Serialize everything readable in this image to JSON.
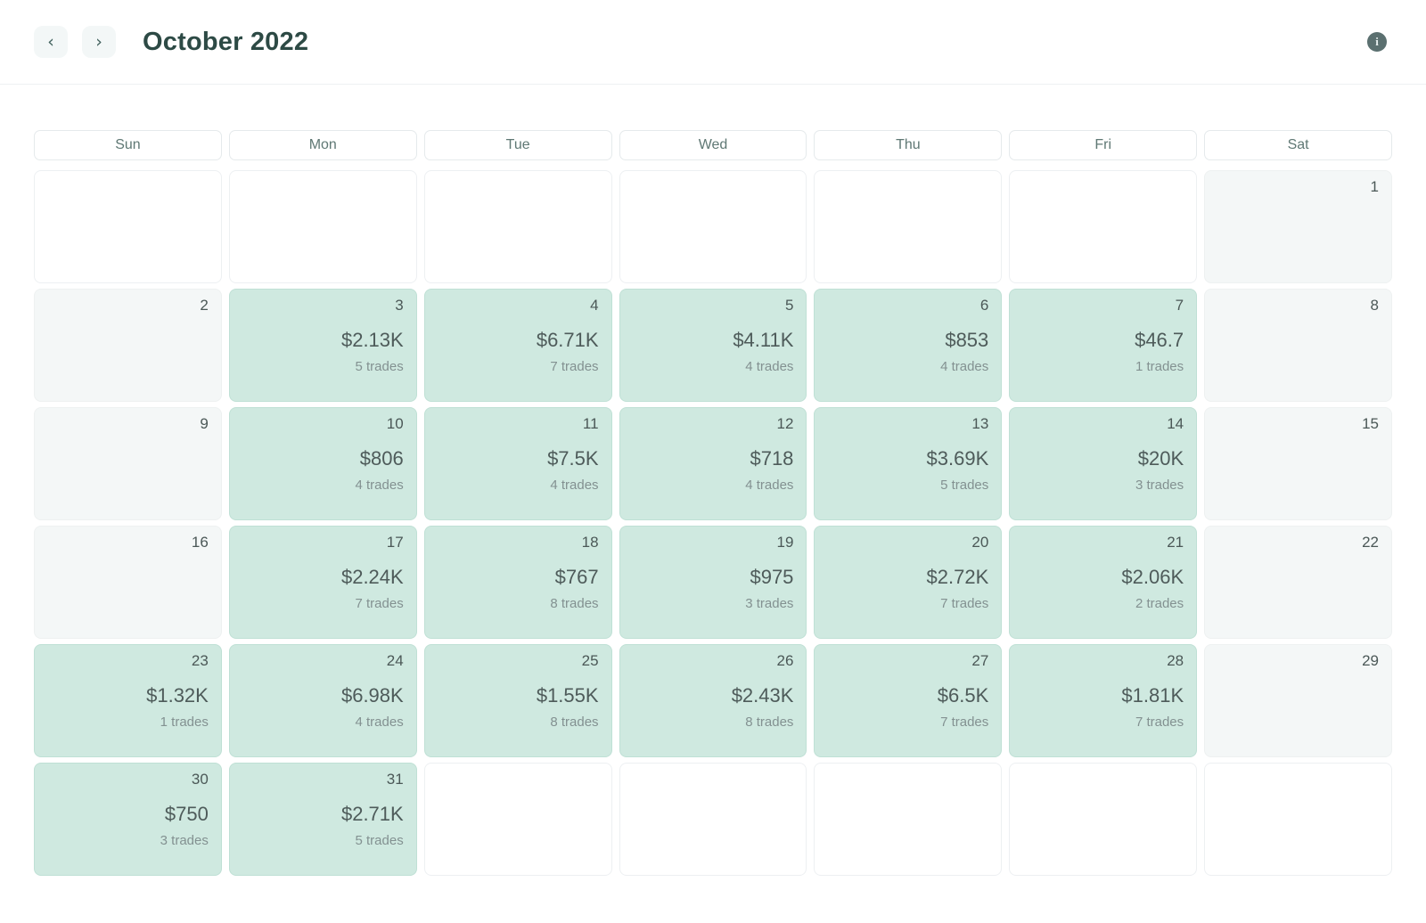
{
  "header": {
    "title": "October 2022",
    "prev_label": "‹",
    "next_label": "›",
    "info_glyph": "i"
  },
  "weekdays": [
    "Sun",
    "Mon",
    "Tue",
    "Wed",
    "Thu",
    "Fri",
    "Sat"
  ],
  "colors": {
    "profit_bg": "#cfe9e0",
    "flat_bg": "#f4f7f7",
    "title_color": "#2d4a45",
    "weekday_color": "#5f7874",
    "day_number_color": "#4b5857",
    "value_color": "#4e5b5a",
    "trades_color": "#839191",
    "nav_btn_bg": "#f3f7f7",
    "chevron_color": "#41615d",
    "info_bg": "#5b7070"
  },
  "calendar": {
    "cells": [
      {
        "day": "",
        "value": "",
        "trades": "",
        "state": "blank"
      },
      {
        "day": "",
        "value": "",
        "trades": "",
        "state": "blank"
      },
      {
        "day": "",
        "value": "",
        "trades": "",
        "state": "blank"
      },
      {
        "day": "",
        "value": "",
        "trades": "",
        "state": "blank"
      },
      {
        "day": "",
        "value": "",
        "trades": "",
        "state": "blank"
      },
      {
        "day": "",
        "value": "",
        "trades": "",
        "state": "blank"
      },
      {
        "day": "1",
        "value": "",
        "trades": "",
        "state": "flat"
      },
      {
        "day": "2",
        "value": "",
        "trades": "",
        "state": "flat"
      },
      {
        "day": "3",
        "value": "$2.13K",
        "trades": "5 trades",
        "state": "profit"
      },
      {
        "day": "4",
        "value": "$6.71K",
        "trades": "7 trades",
        "state": "profit"
      },
      {
        "day": "5",
        "value": "$4.11K",
        "trades": "4 trades",
        "state": "profit"
      },
      {
        "day": "6",
        "value": "$853",
        "trades": "4 trades",
        "state": "profit"
      },
      {
        "day": "7",
        "value": "$46.7",
        "trades": "1 trades",
        "state": "profit"
      },
      {
        "day": "8",
        "value": "",
        "trades": "",
        "state": "flat"
      },
      {
        "day": "9",
        "value": "",
        "trades": "",
        "state": "flat"
      },
      {
        "day": "10",
        "value": "$806",
        "trades": "4 trades",
        "state": "profit"
      },
      {
        "day": "11",
        "value": "$7.5K",
        "trades": "4 trades",
        "state": "profit"
      },
      {
        "day": "12",
        "value": "$718",
        "trades": "4 trades",
        "state": "profit"
      },
      {
        "day": "13",
        "value": "$3.69K",
        "trades": "5 trades",
        "state": "profit"
      },
      {
        "day": "14",
        "value": "$20K",
        "trades": "3 trades",
        "state": "profit"
      },
      {
        "day": "15",
        "value": "",
        "trades": "",
        "state": "flat"
      },
      {
        "day": "16",
        "value": "",
        "trades": "",
        "state": "flat"
      },
      {
        "day": "17",
        "value": "$2.24K",
        "trades": "7 trades",
        "state": "profit"
      },
      {
        "day": "18",
        "value": "$767",
        "trades": "8 trades",
        "state": "profit"
      },
      {
        "day": "19",
        "value": "$975",
        "trades": "3 trades",
        "state": "profit"
      },
      {
        "day": "20",
        "value": "$2.72K",
        "trades": "7 trades",
        "state": "profit"
      },
      {
        "day": "21",
        "value": "$2.06K",
        "trades": "2 trades",
        "state": "profit"
      },
      {
        "day": "22",
        "value": "",
        "trades": "",
        "state": "flat"
      },
      {
        "day": "23",
        "value": "$1.32K",
        "trades": "1 trades",
        "state": "profit"
      },
      {
        "day": "24",
        "value": "$6.98K",
        "trades": "4 trades",
        "state": "profit"
      },
      {
        "day": "25",
        "value": "$1.55K",
        "trades": "8 trades",
        "state": "profit"
      },
      {
        "day": "26",
        "value": "$2.43K",
        "trades": "8 trades",
        "state": "profit"
      },
      {
        "day": "27",
        "value": "$6.5K",
        "trades": "7 trades",
        "state": "profit"
      },
      {
        "day": "28",
        "value": "$1.81K",
        "trades": "7 trades",
        "state": "profit"
      },
      {
        "day": "29",
        "value": "",
        "trades": "",
        "state": "flat"
      },
      {
        "day": "30",
        "value": "$750",
        "trades": "3 trades",
        "state": "profit"
      },
      {
        "day": "31",
        "value": "$2.71K",
        "trades": "5 trades",
        "state": "profit"
      },
      {
        "day": "",
        "value": "",
        "trades": "",
        "state": "blank"
      },
      {
        "day": "",
        "value": "",
        "trades": "",
        "state": "blank"
      },
      {
        "day": "",
        "value": "",
        "trades": "",
        "state": "blank"
      },
      {
        "day": "",
        "value": "",
        "trades": "",
        "state": "blank"
      },
      {
        "day": "",
        "value": "",
        "trades": "",
        "state": "blank"
      }
    ]
  }
}
